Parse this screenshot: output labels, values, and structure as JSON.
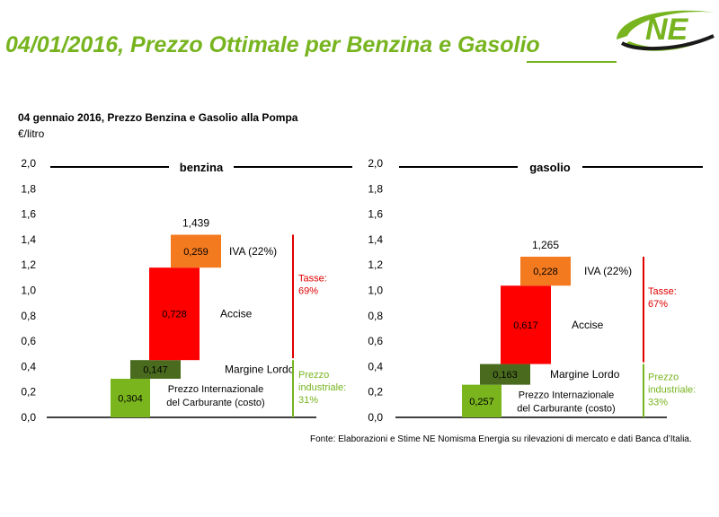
{
  "page": {
    "title": "04/01/2016, Prezzo Ottimale per Benzina e Gasolio",
    "subtitle": "04 gennaio 2016, Prezzo Benzina e Gasolio alla Pompa",
    "unit": "€/litro",
    "source": "Fonte: Elaborazioni e Stime NE Nomisma Energia su rilevazioni di mercato e dati Banca d’Italia.",
    "logo_text": "NE"
  },
  "colors": {
    "brand_green": "#77b41f",
    "tax_red": "#e00000",
    "accise": "#ff0000",
    "iva": "#f47a1f",
    "margine": "#4a6b1e",
    "prezzo": "#7ab51d"
  },
  "chart_data": [
    {
      "type": "waterfall",
      "title": "benzina",
      "ylim": [
        0,
        2.0
      ],
      "yticks": [
        "0,0",
        "0,2",
        "0,4",
        "0,6",
        "0,8",
        "1,0",
        "1,2",
        "1,4",
        "1,6",
        "1,8",
        "2,0"
      ],
      "total_label": "1,439",
      "total": 1.439,
      "segments": [
        {
          "name": "Prezzo Internazionale del Carburante (costo)",
          "value": 0.304,
          "label": "0,304",
          "color": "#7ab51d"
        },
        {
          "name": "Margine Lordo",
          "value": 0.147,
          "label": "0,147",
          "color": "#4a6b1e"
        },
        {
          "name": "Accise",
          "value": 0.728,
          "label": "0,728",
          "color": "#ff0000"
        },
        {
          "name": "IVA (22%)",
          "value": 0.259,
          "label": "0,259",
          "color": "#f47a1f"
        }
      ],
      "groups": [
        {
          "label": "Tasse: 69%",
          "color": "#e00000"
        },
        {
          "label": "Prezzo industriale: 31%",
          "color": "#77b41f"
        }
      ]
    },
    {
      "type": "waterfall",
      "title": "gasolio",
      "ylim": [
        0,
        2.0
      ],
      "yticks": [
        "0,0",
        "0,2",
        "0,4",
        "0,6",
        "0,8",
        "1,0",
        "1,2",
        "1,4",
        "1,6",
        "1,8",
        "2,0"
      ],
      "total_label": "1,265",
      "total": 1.265,
      "segments": [
        {
          "name": "Prezzo Internazionale del Carburante (costo)",
          "value": 0.257,
          "label": "0,257",
          "color": "#7ab51d"
        },
        {
          "name": "Margine Lordo",
          "value": 0.163,
          "label": "0,163",
          "color": "#4a6b1e"
        },
        {
          "name": "Accise",
          "value": 0.617,
          "label": "0,617",
          "color": "#ff0000"
        },
        {
          "name": "IVA (22%)",
          "value": 0.228,
          "label": "0,228",
          "color": "#f47a1f"
        }
      ],
      "groups": [
        {
          "label": "Tasse: 67%",
          "color": "#e00000"
        },
        {
          "label": "Prezzo industriale: 33%",
          "color": "#77b41f"
        }
      ]
    }
  ]
}
